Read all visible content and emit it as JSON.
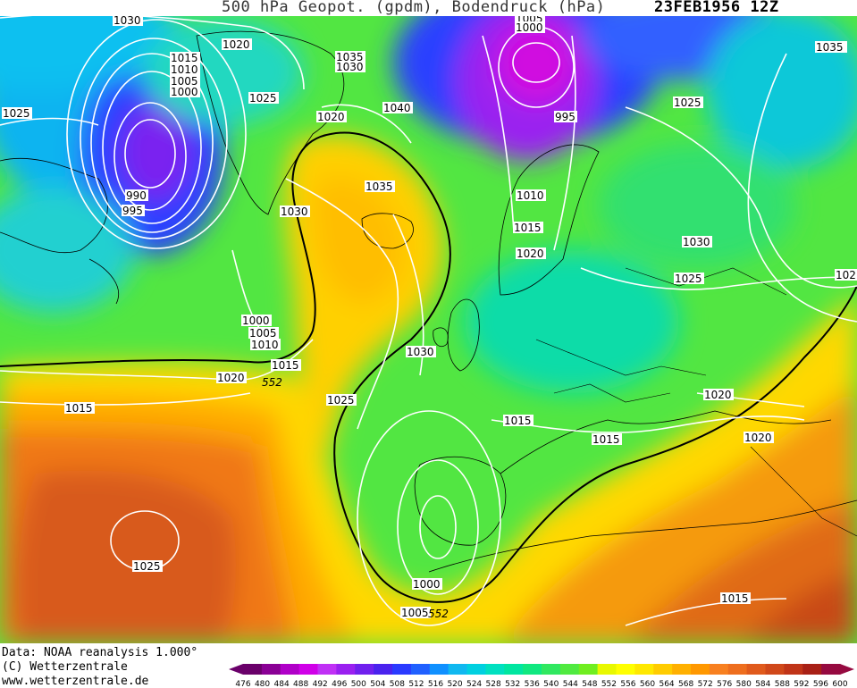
{
  "header": {
    "title": "500 hPa Geopot. (gpdm), Bodendruck (hPa)",
    "date": "23FEB1956 12Z"
  },
  "footer": {
    "data_source": "Data: NOAA reanalysis 1.000°",
    "copyright": "(C) Wetterzentrale",
    "website": "www.wetterzentrale.de"
  },
  "colorscale": {
    "labels": [
      "476",
      "480",
      "484",
      "488",
      "492",
      "496",
      "500",
      "504",
      "508",
      "512",
      "516",
      "520",
      "524",
      "528",
      "532",
      "536",
      "540",
      "544",
      "548",
      "552",
      "556",
      "560",
      "564",
      "568",
      "572",
      "576",
      "580",
      "584",
      "588",
      "592",
      "596",
      "600"
    ],
    "colors": [
      "#6a006a",
      "#8a0095",
      "#b000c8",
      "#d000e8",
      "#c030f5",
      "#9a20f0",
      "#7020ee",
      "#4a22ee",
      "#2a3aff",
      "#2060ff",
      "#1090ff",
      "#10b8f0",
      "#00d0e0",
      "#00e0c0",
      "#00e6a0",
      "#10e880",
      "#30e860",
      "#50ea40",
      "#70ee20",
      "#e8f800",
      "#ffff00",
      "#ffe800",
      "#ffcc00",
      "#ffb000",
      "#ff9800",
      "#f88020",
      "#ee6e1e",
      "#e05a1c",
      "#d0481a",
      "#c03418",
      "#a82016",
      "#960a40"
    ]
  },
  "isobars": {
    "labels": [
      {
        "t": "1030"
      },
      {
        "t": "1020"
      },
      {
        "t": "1015"
      },
      {
        "t": "1010"
      },
      {
        "t": "1005"
      },
      {
        "t": "1000"
      },
      {
        "t": "1025"
      },
      {
        "t": "990"
      },
      {
        "t": "995"
      },
      {
        "t": "1035"
      },
      {
        "t": "1030"
      },
      {
        "t": "1020"
      },
      {
        "t": "1025"
      },
      {
        "t": "1040"
      },
      {
        "t": "1035"
      },
      {
        "t": "1030"
      },
      {
        "t": "1005"
      },
      {
        "t": "1000"
      },
      {
        "t": "995"
      },
      {
        "t": "1010"
      },
      {
        "t": "1015"
      },
      {
        "t": "1020"
      },
      {
        "t": "1035"
      },
      {
        "t": "1025"
      },
      {
        "t": "1030"
      },
      {
        "t": "1025"
      },
      {
        "t": "102"
      },
      {
        "t": "1000"
      },
      {
        "t": "1005"
      },
      {
        "t": "1010"
      },
      {
        "t": "1015"
      },
      {
        "t": "1020"
      },
      {
        "t": "1015"
      },
      {
        "t": "1030"
      },
      {
        "t": "1025"
      },
      {
        "t": "1015"
      },
      {
        "t": "1015"
      },
      {
        "t": "1020"
      },
      {
        "t": "1020"
      },
      {
        "t": "1025"
      },
      {
        "t": "1000"
      },
      {
        "t": "1005"
      },
      {
        "t": "1015"
      }
    ]
  },
  "geopotential_labels": [
    "552",
    "552"
  ]
}
